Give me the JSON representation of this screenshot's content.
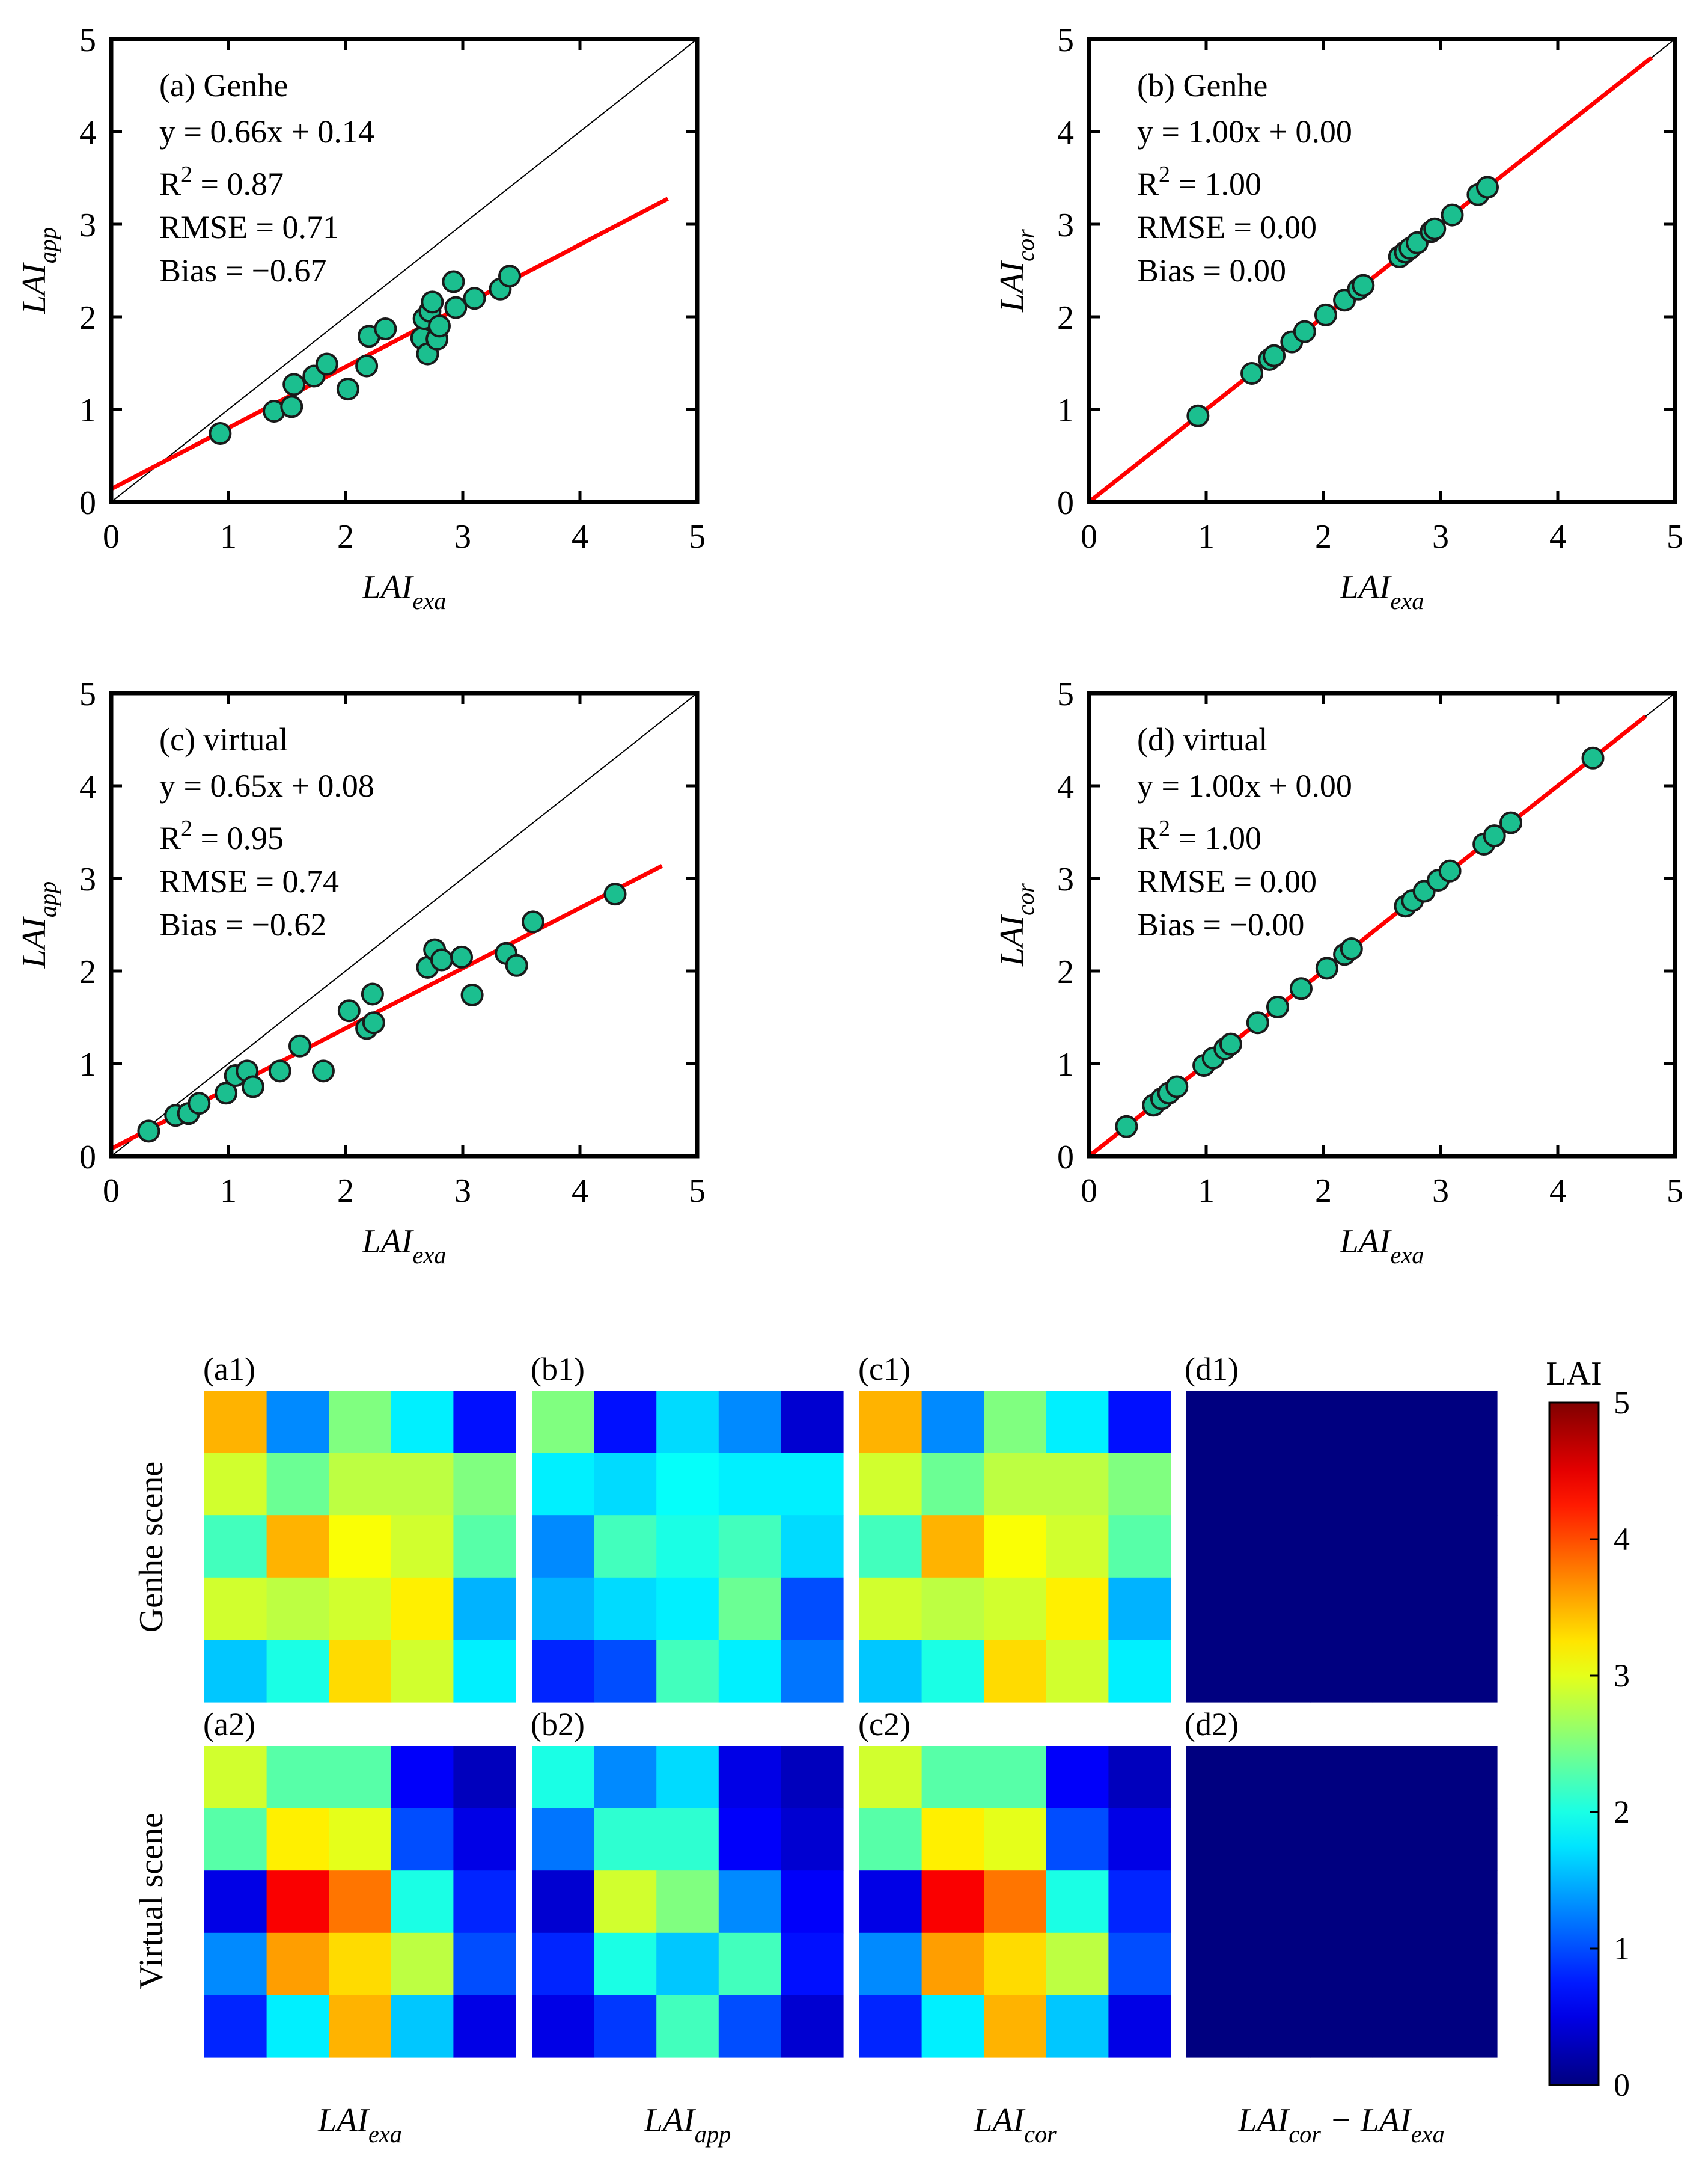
{
  "chart_data": [
    {
      "panel": "(a) Genhe",
      "type": "scatter",
      "xlabel": "LAI",
      "xlabel_sub": "exa",
      "ylabel": "LAI",
      "ylabel_sub": "app",
      "xlim": [
        0,
        5
      ],
      "ylim": [
        0,
        5
      ],
      "xticks": [
        "0",
        "1",
        "2",
        "3",
        "4",
        "5"
      ],
      "yticks": [
        "0",
        "1",
        "2",
        "3",
        "4",
        "5"
      ],
      "stats": {
        "eq": "y = 0.66x + 0.14",
        "r2": " = 0.87",
        "rmse": "RMSE = 0.71",
        "bias": "Bias = −0.67"
      },
      "fit": {
        "slope": 0.66,
        "intercept": 0.14,
        "xmax": 4.75
      },
      "one_to_one": true,
      "points": [
        [
          0.93,
          0.74
        ],
        [
          1.39,
          0.98
        ],
        [
          1.54,
          1.03
        ],
        [
          1.56,
          1.27
        ],
        [
          1.73,
          1.36
        ],
        [
          1.84,
          1.49
        ],
        [
          2.02,
          1.22
        ],
        [
          2.18,
          1.47
        ],
        [
          2.2,
          1.79
        ],
        [
          2.34,
          1.87
        ],
        [
          2.65,
          1.77
        ],
        [
          2.67,
          1.98
        ],
        [
          2.7,
          1.6
        ],
        [
          2.72,
          2.06
        ],
        [
          2.74,
          2.16
        ],
        [
          2.78,
          1.76
        ],
        [
          2.8,
          1.9
        ],
        [
          2.92,
          2.38
        ],
        [
          2.94,
          2.1
        ],
        [
          3.1,
          2.2
        ],
        [
          3.32,
          2.3
        ],
        [
          3.4,
          2.44
        ]
      ],
      "colors": {
        "marker": "#1bbf8f",
        "fit": "#ff0000"
      }
    },
    {
      "panel": "(b) Genhe",
      "type": "scatter",
      "xlabel": "LAI",
      "xlabel_sub": "exa",
      "ylabel": "LAI",
      "ylabel_sub": "cor",
      "xlim": [
        0,
        5
      ],
      "ylim": [
        0,
        5
      ],
      "xticks": [
        "0",
        "1",
        "2",
        "3",
        "4",
        "5"
      ],
      "yticks": [
        "0",
        "1",
        "2",
        "3",
        "4",
        "5"
      ],
      "stats": {
        "eq": "y = 1.00x + 0.00",
        "r2": " = 1.00",
        "rmse": "RMSE = 0.00",
        "bias": "Bias = 0.00"
      },
      "fit": {
        "slope": 1.0,
        "intercept": 0.0,
        "xmax": 4.8
      },
      "one_to_one": true,
      "points": [
        [
          0.93,
          0.93
        ],
        [
          1.39,
          1.39
        ],
        [
          1.54,
          1.54
        ],
        [
          1.58,
          1.58
        ],
        [
          1.73,
          1.73
        ],
        [
          1.84,
          1.84
        ],
        [
          2.02,
          2.02
        ],
        [
          2.18,
          2.18
        ],
        [
          2.3,
          2.3
        ],
        [
          2.34,
          2.34
        ],
        [
          2.65,
          2.65
        ],
        [
          2.7,
          2.7
        ],
        [
          2.74,
          2.74
        ],
        [
          2.8,
          2.8
        ],
        [
          2.92,
          2.92
        ],
        [
          2.95,
          2.95
        ],
        [
          3.1,
          3.1
        ],
        [
          3.32,
          3.32
        ],
        [
          3.4,
          3.4
        ]
      ],
      "colors": {
        "marker": "#1bbf8f",
        "fit": "#ff0000"
      }
    },
    {
      "panel": "(c) virtual",
      "type": "scatter",
      "xlabel": "LAI",
      "xlabel_sub": "exa",
      "ylabel": "LAI",
      "ylabel_sub": "app",
      "xlim": [
        0,
        5
      ],
      "ylim": [
        0,
        5
      ],
      "xticks": [
        "0",
        "1",
        "2",
        "3",
        "4",
        "5"
      ],
      "yticks": [
        "0",
        "1",
        "2",
        "3",
        "4",
        "5"
      ],
      "stats": {
        "eq": "y = 0.65x + 0.08",
        "r2": " = 0.95",
        "rmse": "RMSE = 0.74",
        "bias": "Bias = −0.62"
      },
      "fit": {
        "slope": 0.65,
        "intercept": 0.08,
        "xmax": 4.7
      },
      "one_to_one": true,
      "points": [
        [
          0.32,
          0.27
        ],
        [
          0.55,
          0.44
        ],
        [
          0.66,
          0.46
        ],
        [
          0.75,
          0.57
        ],
        [
          0.98,
          0.68
        ],
        [
          1.06,
          0.87
        ],
        [
          1.16,
          0.92
        ],
        [
          1.21,
          0.75
        ],
        [
          1.44,
          0.92
        ],
        [
          1.61,
          1.19
        ],
        [
          1.81,
          0.92
        ],
        [
          2.03,
          1.57
        ],
        [
          2.18,
          1.38
        ],
        [
          2.23,
          1.75
        ],
        [
          2.24,
          1.44
        ],
        [
          2.7,
          2.04
        ],
        [
          2.76,
          2.23
        ],
        [
          2.82,
          2.12
        ],
        [
          2.99,
          2.15
        ],
        [
          3.08,
          1.74
        ],
        [
          3.37,
          2.19
        ],
        [
          3.46,
          2.06
        ],
        [
          3.6,
          2.53
        ],
        [
          4.3,
          2.83
        ]
      ],
      "colors": {
        "marker": "#1bbf8f",
        "fit": "#ff0000"
      }
    },
    {
      "panel": "(d) virtual",
      "type": "scatter",
      "xlabel": "LAI",
      "xlabel_sub": "exa",
      "ylabel": "LAI",
      "ylabel_sub": "cor",
      "xlim": [
        0,
        5
      ],
      "ylim": [
        0,
        5
      ],
      "xticks": [
        "0",
        "1",
        "2",
        "3",
        "4",
        "5"
      ],
      "yticks": [
        "0",
        "1",
        "2",
        "3",
        "4",
        "5"
      ],
      "stats": {
        "eq": "y = 1.00x + 0.00",
        "r2": " = 1.00",
        "rmse": "RMSE = 0.00",
        "bias": "Bias = −0.00"
      },
      "fit": {
        "slope": 1.0,
        "intercept": 0.0,
        "xmax": 4.75
      },
      "one_to_one": true,
      "points": [
        [
          0.32,
          0.32
        ],
        [
          0.55,
          0.55
        ],
        [
          0.62,
          0.62
        ],
        [
          0.68,
          0.68
        ],
        [
          0.75,
          0.75
        ],
        [
          0.98,
          0.98
        ],
        [
          1.06,
          1.06
        ],
        [
          1.16,
          1.16
        ],
        [
          1.21,
          1.21
        ],
        [
          1.44,
          1.44
        ],
        [
          1.61,
          1.61
        ],
        [
          1.81,
          1.81
        ],
        [
          2.03,
          2.03
        ],
        [
          2.18,
          2.18
        ],
        [
          2.24,
          2.24
        ],
        [
          2.7,
          2.7
        ],
        [
          2.76,
          2.76
        ],
        [
          2.86,
          2.86
        ],
        [
          2.98,
          2.98
        ],
        [
          3.08,
          3.08
        ],
        [
          3.37,
          3.37
        ],
        [
          3.46,
          3.46
        ],
        [
          3.6,
          3.6
        ],
        [
          4.3,
          4.3
        ]
      ],
      "colors": {
        "marker": "#1bbf8f",
        "fit": "#ff0000"
      }
    },
    {
      "type": "heatmap",
      "colormap": "jet",
      "vmin": 0,
      "vmax": 5,
      "colorbar": {
        "label": "LAI",
        "ticks": [
          "0",
          "1",
          "2",
          "3",
          "4",
          "5"
        ]
      },
      "row_labels": [
        "Genhe scene",
        "Virtual scene"
      ],
      "col_labels": [
        {
          "main": "LAI",
          "sub": "exa"
        },
        {
          "main": "LAI",
          "sub": "app"
        },
        {
          "main": "LAI",
          "sub": "cor"
        },
        {
          "main": "LAI",
          "sub": "cor",
          "mid": " − LAI",
          "sub2": "exa"
        }
      ],
      "panels": [
        {
          "label": "(a1)",
          "values": [
            [
              3.5,
              1.3,
              2.5,
              1.8,
              0.7
            ],
            [
              2.9,
              2.4,
              2.8,
              2.8,
              2.5
            ],
            [
              2.2,
              3.5,
              3.1,
              2.9,
              2.3
            ],
            [
              2.9,
              2.8,
              2.9,
              3.2,
              1.5
            ],
            [
              1.6,
              2.0,
              3.3,
              2.9,
              1.8
            ]
          ]
        },
        {
          "label": "(b1)",
          "values": [
            [
              2.5,
              0.7,
              1.7,
              1.3,
              0.4
            ],
            [
              1.8,
              1.7,
              1.9,
              1.8,
              1.8
            ],
            [
              1.3,
              2.2,
              2.0,
              2.2,
              1.7
            ],
            [
              1.5,
              1.7,
              1.8,
              2.4,
              1.0
            ],
            [
              0.8,
              1.0,
              2.2,
              1.8,
              1.2
            ]
          ]
        },
        {
          "label": "(c1)",
          "values": [
            [
              3.5,
              1.3,
              2.5,
              1.8,
              0.7
            ],
            [
              2.9,
              2.4,
              2.8,
              2.8,
              2.5
            ],
            [
              2.2,
              3.5,
              3.1,
              2.9,
              2.3
            ],
            [
              2.9,
              2.8,
              2.9,
              3.2,
              1.5
            ],
            [
              1.6,
              2.0,
              3.3,
              2.9,
              1.8
            ]
          ]
        },
        {
          "label": "(d1)",
          "values": [
            [
              0,
              0,
              0,
              0,
              0
            ],
            [
              0,
              0,
              0,
              0,
              0
            ],
            [
              0,
              0,
              0,
              0,
              0
            ],
            [
              0,
              0,
              0,
              0,
              0
            ],
            [
              0,
              0,
              0,
              0,
              0
            ]
          ]
        },
        {
          "label": "(a2)",
          "values": [
            [
              2.9,
              2.3,
              2.3,
              0.6,
              0.3
            ],
            [
              2.3,
              3.2,
              3.0,
              1.0,
              0.5
            ],
            [
              0.5,
              4.4,
              3.8,
              2.0,
              0.8
            ],
            [
              1.3,
              3.6,
              3.3,
              2.8,
              1.0
            ],
            [
              0.8,
              1.8,
              3.5,
              1.6,
              0.5
            ]
          ]
        },
        {
          "label": "(b2)",
          "values": [
            [
              2.0,
              1.3,
              1.7,
              0.5,
              0.3
            ],
            [
              1.2,
              2.1,
              2.1,
              0.6,
              0.4
            ],
            [
              0.4,
              2.9,
              2.5,
              1.3,
              0.6
            ],
            [
              0.8,
              2.0,
              1.6,
              2.2,
              0.7
            ],
            [
              0.5,
              0.9,
              2.2,
              1.0,
              0.4
            ]
          ]
        },
        {
          "label": "(c2)",
          "values": [
            [
              2.9,
              2.3,
              2.3,
              0.6,
              0.3
            ],
            [
              2.3,
              3.2,
              3.0,
              1.0,
              0.5
            ],
            [
              0.5,
              4.4,
              3.8,
              2.0,
              0.8
            ],
            [
              1.3,
              3.6,
              3.3,
              2.8,
              1.0
            ],
            [
              0.8,
              1.8,
              3.5,
              1.6,
              0.5
            ]
          ]
        },
        {
          "label": "(d2)",
          "values": [
            [
              0,
              0,
              0,
              0,
              0
            ],
            [
              0,
              0,
              0,
              0,
              0
            ],
            [
              0,
              0,
              0,
              0,
              0
            ],
            [
              0,
              0,
              0,
              0,
              0
            ],
            [
              0,
              0,
              0,
              0,
              0
            ]
          ]
        }
      ]
    }
  ]
}
